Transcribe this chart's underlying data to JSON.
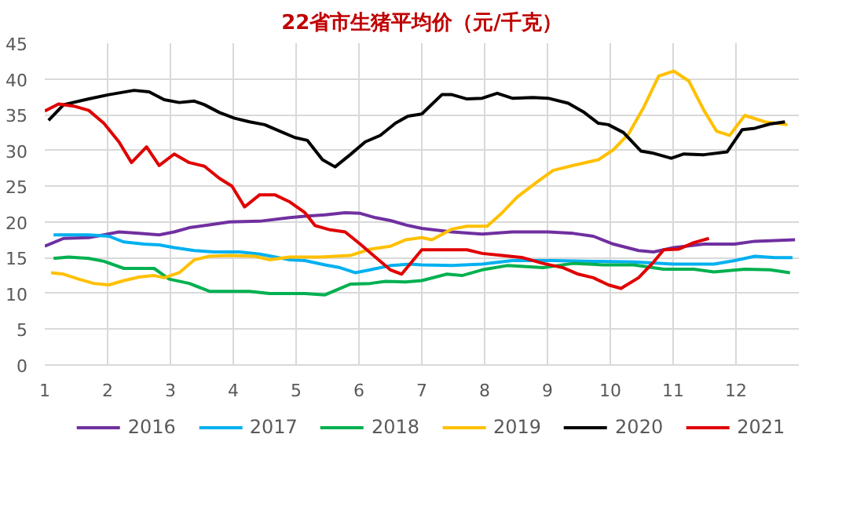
{
  "chart_data": {
    "type": "line",
    "title": "22省市生猪平均价（元/千克）",
    "xlim": [
      1,
      13
    ],
    "xticks": [
      1,
      2,
      3,
      4,
      5,
      6,
      7,
      8,
      9,
      10,
      11,
      12
    ],
    "ylim": [
      0,
      45
    ],
    "yticks": [
      0,
      5,
      10,
      15,
      20,
      25,
      30,
      35,
      40,
      45
    ],
    "grid": true,
    "legend": "bottom",
    "marker": "none",
    "line_style": "solid",
    "series": [
      {
        "name": "2016",
        "color": "#7030a0",
        "x": [
          1.0,
          1.3,
          1.7,
          1.94,
          2.18,
          2.5,
          2.82,
          3.06,
          3.3,
          3.62,
          3.94,
          4.42,
          4.9,
          5.14,
          5.46,
          5.78,
          6.02,
          6.26,
          6.5,
          6.78,
          7.0,
          7.48,
          7.96,
          8.44,
          9.01,
          9.41,
          9.73,
          10.05,
          10.45,
          10.69,
          11.01,
          11.49,
          11.98,
          12.3,
          12.94
        ],
        "values": [
          16.6,
          17.7,
          17.8,
          18.2,
          18.6,
          18.4,
          18.2,
          18.6,
          19.2,
          19.6,
          20.0,
          20.1,
          20.6,
          20.8,
          21.0,
          21.3,
          21.2,
          20.6,
          20.2,
          19.5,
          19.1,
          18.6,
          18.3,
          18.6,
          18.6,
          18.4,
          18.0,
          16.9,
          16.0,
          15.8,
          16.4,
          16.9,
          16.9,
          17.3,
          17.5
        ]
      },
      {
        "name": "2017",
        "color": "#00b0f0",
        "x": [
          1.14,
          1.7,
          2.02,
          2.26,
          2.58,
          2.82,
          3.06,
          3.38,
          3.7,
          4.1,
          4.42,
          4.9,
          5.14,
          5.46,
          5.7,
          5.94,
          6.18,
          6.5,
          6.82,
          7.0,
          7.48,
          7.96,
          8.44,
          9.09,
          9.73,
          10.37,
          11.01,
          11.65,
          11.98,
          12.3,
          12.62,
          12.9
        ],
        "values": [
          18.2,
          18.2,
          18.0,
          17.2,
          16.9,
          16.8,
          16.4,
          16.0,
          15.8,
          15.8,
          15.5,
          14.7,
          14.6,
          14.0,
          13.6,
          12.9,
          13.3,
          13.9,
          14.1,
          14.0,
          13.9,
          14.1,
          14.6,
          14.6,
          14.5,
          14.4,
          14.1,
          14.1,
          14.6,
          15.2,
          15.0,
          15.0
        ]
      },
      {
        "name": "2018",
        "color": "#00b050",
        "x": [
          1.14,
          1.38,
          1.7,
          1.94,
          2.26,
          2.74,
          2.98,
          3.3,
          3.62,
          4.26,
          4.58,
          5.14,
          5.46,
          5.86,
          6.18,
          6.42,
          6.74,
          7.0,
          7.4,
          7.64,
          7.96,
          8.36,
          8.93,
          9.41,
          9.89,
          10.37,
          10.85,
          11.33,
          11.65,
          12.14,
          12.54,
          12.86
        ],
        "values": [
          14.9,
          15.1,
          14.9,
          14.5,
          13.5,
          13.5,
          12.0,
          11.4,
          10.3,
          10.3,
          10.0,
          10.0,
          9.8,
          11.3,
          11.4,
          11.7,
          11.6,
          11.8,
          12.7,
          12.5,
          13.3,
          13.9,
          13.6,
          14.2,
          14.0,
          14.0,
          13.4,
          13.4,
          13.0,
          13.4,
          13.3,
          12.9
        ]
      },
      {
        "name": "2019",
        "color": "#ffc000",
        "x": [
          1.1,
          1.3,
          1.54,
          1.78,
          2.02,
          2.26,
          2.5,
          2.74,
          2.9,
          3.14,
          3.38,
          3.62,
          3.94,
          4.34,
          4.58,
          4.9,
          5.38,
          5.86,
          6.18,
          6.5,
          6.74,
          7.0,
          7.16,
          7.48,
          7.72,
          8.04,
          8.28,
          8.52,
          8.85,
          9.09,
          9.41,
          9.81,
          10.05,
          10.29,
          10.53,
          10.77,
          11.01,
          11.25,
          11.49,
          11.69,
          11.9,
          12.14,
          12.46,
          12.82
        ],
        "values": [
          12.9,
          12.7,
          12.0,
          11.4,
          11.2,
          11.8,
          12.3,
          12.5,
          12.2,
          12.9,
          14.7,
          15.2,
          15.3,
          15.2,
          14.7,
          15.1,
          15.1,
          15.3,
          16.2,
          16.6,
          17.5,
          17.8,
          17.5,
          19.0,
          19.4,
          19.4,
          21.3,
          23.5,
          25.7,
          27.2,
          27.9,
          28.7,
          30.1,
          32.3,
          36.0,
          40.4,
          41.1,
          39.7,
          35.6,
          32.7,
          32.1,
          34.9,
          34.0,
          33.6
        ]
      },
      {
        "name": "2020",
        "color": "#000000",
        "x": [
          1.06,
          1.3,
          1.7,
          2.02,
          2.42,
          2.66,
          2.9,
          3.14,
          3.38,
          3.54,
          3.78,
          4.02,
          4.26,
          4.5,
          4.74,
          4.98,
          5.18,
          5.42,
          5.62,
          5.86,
          6.1,
          6.34,
          6.58,
          6.78,
          7.0,
          7.32,
          7.48,
          7.72,
          7.96,
          8.2,
          8.44,
          8.77,
          9.01,
          9.33,
          9.57,
          9.81,
          9.97,
          10.21,
          10.49,
          10.69,
          10.97,
          11.17,
          11.49,
          11.86,
          12.1,
          12.3,
          12.54,
          12.78
        ],
        "values": [
          34.2,
          36.4,
          37.2,
          37.8,
          38.4,
          38.2,
          37.1,
          36.7,
          36.9,
          36.4,
          35.3,
          34.5,
          34.0,
          33.6,
          32.7,
          31.8,
          31.4,
          28.7,
          27.7,
          29.4,
          31.2,
          32.1,
          33.8,
          34.8,
          35.1,
          37.8,
          37.8,
          37.2,
          37.3,
          38.0,
          37.3,
          37.4,
          37.3,
          36.6,
          35.4,
          33.8,
          33.6,
          32.5,
          29.9,
          29.6,
          28.9,
          29.5,
          29.4,
          29.8,
          32.9,
          33.1,
          33.7,
          34.0
        ]
      },
      {
        "name": "2021",
        "color": "#e00000",
        "x": [
          1.0,
          1.22,
          1.46,
          1.7,
          1.94,
          2.18,
          2.38,
          2.62,
          2.82,
          3.06,
          3.3,
          3.54,
          3.78,
          3.98,
          4.18,
          4.42,
          4.66,
          4.9,
          5.14,
          5.3,
          5.54,
          5.78,
          6.02,
          6.26,
          6.5,
          6.68,
          7.0,
          7.32,
          7.72,
          7.96,
          8.28,
          8.61,
          8.93,
          9.25,
          9.49,
          9.73,
          9.97,
          10.17,
          10.45,
          10.69,
          10.85,
          11.09,
          11.33,
          11.57
        ],
        "values": [
          35.5,
          36.5,
          36.2,
          35.6,
          33.8,
          31.2,
          28.3,
          30.5,
          27.9,
          29.5,
          28.3,
          27.8,
          26.1,
          25.0,
          22.1,
          23.8,
          23.8,
          22.8,
          21.3,
          19.5,
          18.9,
          18.6,
          16.9,
          15.1,
          13.3,
          12.7,
          16.1,
          16.1,
          16.1,
          15.6,
          15.3,
          15.0,
          14.2,
          13.6,
          12.7,
          12.2,
          11.2,
          10.7,
          12.2,
          14.4,
          16.1,
          16.2,
          17.1,
          17.7
        ]
      }
    ]
  }
}
